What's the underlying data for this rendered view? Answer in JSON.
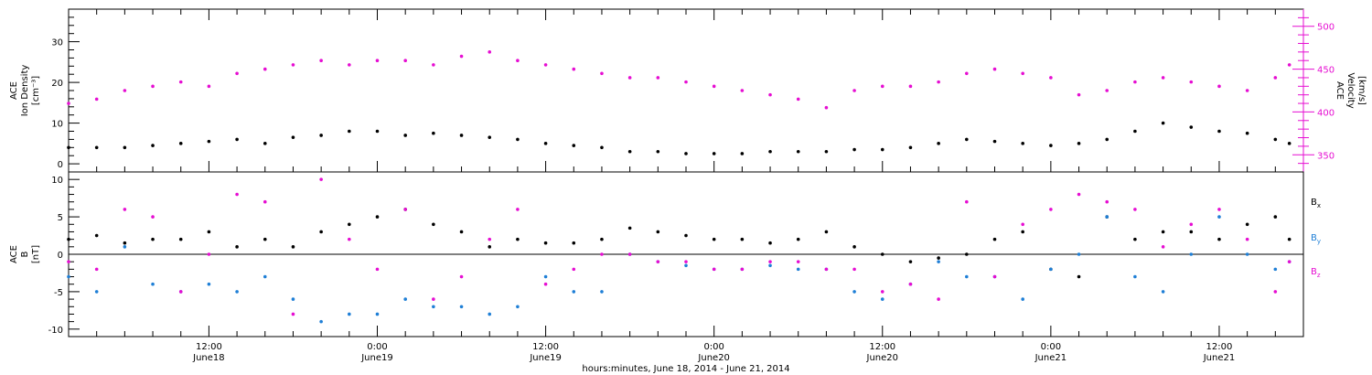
{
  "figure": {
    "xlabel": "hours:minutes, June 18, 2014 - June 21, 2014"
  },
  "x_ticks": [
    {
      "time": "12:00",
      "date": "June18"
    },
    {
      "time": "0:00",
      "date": "June19"
    },
    {
      "time": "12:00",
      "date": "June19"
    },
    {
      "time": "0:00",
      "date": "June20"
    },
    {
      "time": "12:00",
      "date": "June20"
    },
    {
      "time": "0:00",
      "date": "June21"
    },
    {
      "time": "12:00",
      "date": "June21"
    }
  ],
  "colors": {
    "axis": "#000000",
    "density": "#000000",
    "velocity": "#e60ed2",
    "bx": "#000000",
    "by": "#1f7fd6",
    "bz": "#e60ed2"
  },
  "top_panel": {
    "left_label_lines": [
      "ACE",
      "Ion Density",
      "[cm⁻³]"
    ],
    "right_label_lines": [
      "ACE",
      "Velocity",
      "[km/s]"
    ],
    "left_ticks": [
      "0",
      "10",
      "20",
      "30"
    ],
    "right_ticks": [
      "350",
      "400",
      "450",
      "500"
    ]
  },
  "bottom_panel": {
    "left_label_lines": [
      "ACE",
      "B",
      "[nT]"
    ],
    "left_ticks": [
      "-10",
      "-5",
      "0",
      "5",
      "10"
    ],
    "legend": [
      {
        "name": "B",
        "sub": "x",
        "color_key": "bx"
      },
      {
        "name": "B",
        "sub": "y",
        "color_key": "by"
      },
      {
        "name": "B",
        "sub": "z",
        "color_key": "bz"
      }
    ]
  },
  "chart_data": [
    {
      "type": "scatter",
      "panel": "top",
      "x_unit": "hours since 2014-06-18 00:00",
      "xlim": [
        2,
        90
      ],
      "y_axes": {
        "left": {
          "ylim": [
            -2,
            38
          ],
          "unit": "cm^-3"
        },
        "right": {
          "ylim": [
            330,
            520
          ],
          "unit": "km/s"
        }
      },
      "series": [
        {
          "name": "Ion Density",
          "axis": "left",
          "x": [
            2,
            4,
            6,
            8,
            10,
            12,
            14,
            16,
            18,
            20,
            22,
            24,
            26,
            28,
            30,
            32,
            34,
            36,
            38,
            40,
            42,
            44,
            46,
            48,
            50,
            52,
            54,
            56,
            58,
            60,
            62,
            64,
            66,
            68,
            70,
            72,
            74,
            76,
            78,
            80,
            82,
            84,
            86,
            88,
            89
          ],
          "y": [
            4,
            4,
            4,
            4.5,
            5,
            5.5,
            6,
            5,
            6.5,
            7,
            8,
            8,
            7,
            7.5,
            7,
            6.5,
            6,
            5,
            4.5,
            4,
            3,
            3,
            2.5,
            2.5,
            2.5,
            3,
            3,
            3,
            3.5,
            3.5,
            4,
            5,
            6,
            5.5,
            5,
            4.5,
            5,
            6,
            8,
            10,
            9,
            8,
            7.5,
            6,
            5
          ]
        },
        {
          "name": "Velocity",
          "axis": "right",
          "x": [
            2,
            4,
            6,
            8,
            10,
            12,
            14,
            16,
            18,
            20,
            22,
            24,
            26,
            28,
            30,
            32,
            34,
            36,
            38,
            40,
            42,
            44,
            46,
            48,
            50,
            52,
            54,
            56,
            58,
            60,
            62,
            64,
            66,
            68,
            70,
            72,
            74,
            76,
            78,
            80,
            82,
            84,
            86,
            88,
            89
          ],
          "y": [
            410,
            415,
            425,
            430,
            435,
            430,
            445,
            450,
            455,
            460,
            455,
            460,
            460,
            455,
            465,
            470,
            460,
            455,
            450,
            445,
            440,
            440,
            435,
            430,
            425,
            420,
            415,
            405,
            425,
            430,
            430,
            435,
            445,
            450,
            445,
            440,
            420,
            425,
            435,
            440,
            435,
            430,
            425,
            440,
            455
          ]
        }
      ]
    },
    {
      "type": "scatter",
      "panel": "bottom",
      "x_unit": "hours since 2014-06-18 00:00",
      "xlim": [
        2,
        90
      ],
      "ylim": [
        -11,
        11
      ],
      "ylabel": "B [nT]",
      "series": [
        {
          "name": "Bx",
          "x": [
            2,
            4,
            6,
            8,
            10,
            12,
            14,
            16,
            18,
            20,
            22,
            24,
            26,
            28,
            30,
            32,
            34,
            36,
            38,
            40,
            42,
            44,
            46,
            48,
            50,
            52,
            54,
            56,
            58,
            60,
            62,
            64,
            66,
            68,
            70,
            72,
            74,
            76,
            78,
            80,
            82,
            84,
            86,
            88,
            89
          ],
          "y": [
            2,
            2.5,
            1.5,
            2,
            2,
            3,
            1,
            2,
            1,
            3,
            4,
            5,
            6,
            4,
            3,
            1,
            2,
            1.5,
            1.5,
            2,
            3.5,
            3,
            2.5,
            2,
            2,
            1.5,
            2,
            3,
            1,
            0,
            -1,
            -0.5,
            0,
            2,
            3,
            -2,
            -3,
            5,
            2,
            3,
            3,
            2,
            4,
            5,
            2
          ]
        },
        {
          "name": "By",
          "x": [
            2,
            4,
            6,
            8,
            10,
            12,
            14,
            16,
            18,
            20,
            22,
            24,
            26,
            28,
            30,
            32,
            34,
            36,
            38,
            40,
            42,
            44,
            46,
            48,
            50,
            52,
            54,
            56,
            58,
            60,
            62,
            64,
            66,
            68,
            70,
            72,
            74,
            76,
            78,
            80,
            82,
            84,
            86,
            88,
            89
          ],
          "y": [
            -3,
            -5,
            1,
            -4,
            -5,
            -4,
            -5,
            -3,
            -6,
            -9,
            -8,
            -8,
            -6,
            -7,
            -7,
            -8,
            -7,
            -3,
            -5,
            -5,
            0,
            -1,
            -1.5,
            -2,
            -2,
            -1.5,
            -2,
            -2,
            -5,
            -6,
            -4,
            -1,
            -3,
            -3,
            -6,
            -2,
            0,
            5,
            -3,
            -5,
            0,
            5,
            0,
            -2,
            -1
          ]
        },
        {
          "name": "Bz",
          "x": [
            2,
            4,
            6,
            8,
            10,
            12,
            14,
            16,
            18,
            20,
            22,
            24,
            26,
            28,
            30,
            32,
            34,
            36,
            38,
            40,
            42,
            44,
            46,
            48,
            50,
            52,
            54,
            56,
            58,
            60,
            62,
            64,
            66,
            68,
            70,
            72,
            74,
            76,
            78,
            80,
            82,
            84,
            86,
            88,
            89
          ],
          "y": [
            -1,
            -2,
            6,
            5,
            -5,
            0,
            8,
            7,
            -8,
            10,
            2,
            -2,
            6,
            -6,
            -3,
            2,
            6,
            -4,
            -2,
            0,
            0,
            -1,
            -1,
            -2,
            -2,
            -1,
            -1,
            -2,
            -2,
            -5,
            -4,
            -6,
            7,
            -3,
            4,
            6,
            8,
            7,
            6,
            1,
            4,
            6,
            2,
            -5,
            -1
          ]
        }
      ]
    }
  ]
}
